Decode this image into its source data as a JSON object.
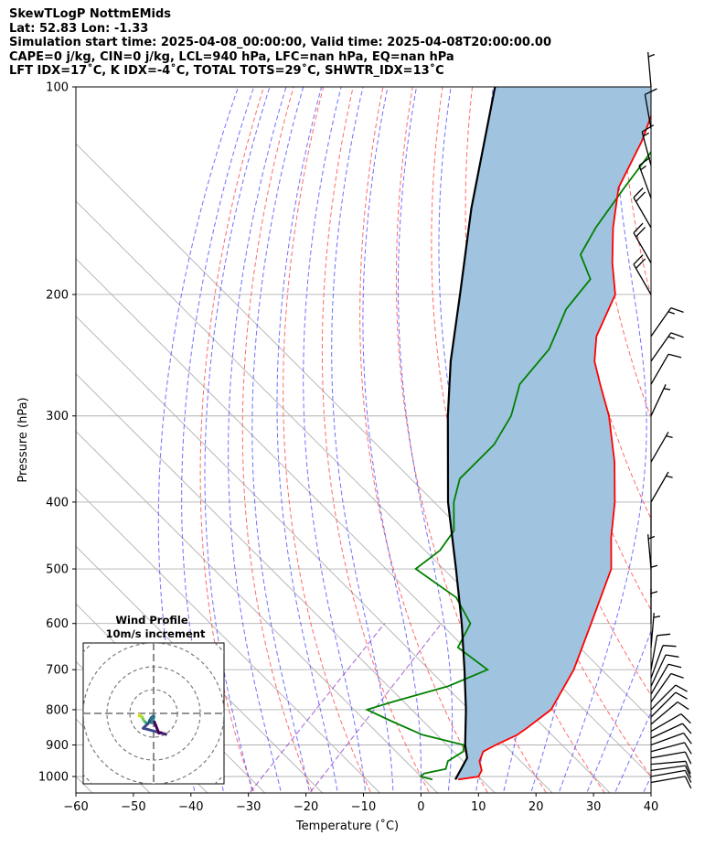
{
  "header": {
    "line1": "SkewTLogP NottmEMids",
    "line2": "Lat: 52.83   Lon: -1.33",
    "line3": "Simulation start time: 2025-04-08_00:00:00, Valid time: 2025-04-08T20:00:00.00",
    "line4": "CAPE=0 j/kg, CIN=0 j/kg, LCL=940 hPa, LFC=nan hPa, EQ=nan hPa",
    "line5": "LFT IDX=17˚C, K IDX=-4˚C, TOTAL TOTS=29˚C, SHWTR_IDX=13˚C"
  },
  "chart_data": {
    "type": "line",
    "xlabel": "Temperature (˚C)",
    "ylabel": "Pressure (hPa)",
    "xlim": [
      -60,
      40
    ],
    "ylim": [
      1050,
      100
    ],
    "yscale": "log",
    "grid": true,
    "x_ticks": [
      "−60",
      "−50",
      "−40",
      "−30",
      "−20",
      "−10",
      "0",
      "10",
      "20",
      "30",
      "40"
    ],
    "y_ticks": [
      "100",
      "200",
      "300",
      "400",
      "500",
      "600",
      "700",
      "800",
      "900",
      "1000"
    ],
    "series": [
      {
        "color": "#ff0000",
        "pressure": [
          1010,
          1000,
          980,
          950,
          920,
          900,
          870,
          850,
          800,
          700,
          600,
          500,
          450,
          400,
          350,
          300,
          270,
          250,
          230,
          200,
          180,
          160,
          140,
          120,
          100
        ],
        "temperature": [
          7,
          10,
          9.5,
          7.5,
          6.5,
          7.5,
          9.5,
          10,
          11,
          8,
          3,
          -3,
          -8.5,
          -14,
          -21,
          -30,
          -37,
          -42,
          -46,
          -50,
          -56,
          -62,
          -68,
          -72,
          -78
        ]
      },
      {
        "color": "#008000",
        "pressure": [
          1010,
          1000,
          990,
          975,
          950,
          920,
          900,
          870,
          830,
          800,
          780,
          740,
          700,
          650,
          600,
          550,
          500,
          470,
          440,
          400,
          370,
          330,
          300,
          270,
          240,
          210,
          190,
          175,
          160,
          140,
          120,
          100
        ],
        "temperature": [
          2.5,
          0,
          0,
          3,
          2,
          3,
          2,
          -7,
          -15,
          -21,
          -18,
          -11,
          -7,
          -16,
          -18,
          -25,
          -37,
          -36,
          -37,
          -42,
          -45,
          -45,
          -47,
          -51,
          -52,
          -56,
          -57,
          -63,
          -65,
          -67,
          -69,
          -70
        ]
      },
      {
        "color": "#000000",
        "pressure": [
          1010,
          940,
          900,
          800,
          700,
          600,
          500,
          400,
          300,
          250,
          200,
          150,
          100
        ],
        "temperature": [
          6.5,
          4.8,
          2.2,
          -3.8,
          -11,
          -19.5,
          -30,
          -43,
          -58,
          -67,
          -77,
          -90,
          -107
        ]
      }
    ],
    "wind_barbs": {
      "pressure": [
        1020,
        1000,
        980,
        960,
        940,
        920,
        900,
        880,
        860,
        840,
        820,
        800,
        780,
        760,
        740,
        720,
        700,
        650,
        600,
        550,
        500,
        450,
        400,
        350,
        300,
        270,
        250,
        230,
        200,
        180,
        160,
        145,
        130,
        115,
        100
      ],
      "speed_kt": [
        12,
        12,
        12,
        12,
        12,
        10,
        10,
        10,
        10,
        10,
        10,
        10,
        10,
        10,
        8,
        8,
        8,
        4,
        4,
        4,
        3,
        2,
        4,
        7,
        7,
        10,
        15,
        15,
        20,
        20,
        20,
        17,
        17,
        10,
        7
      ],
      "direction_deg": [
        80,
        80,
        82,
        85,
        80,
        75,
        70,
        65,
        60,
        50,
        45,
        45,
        35,
        30,
        25,
        20,
        10,
        5,
        0,
        0,
        355,
        0,
        30,
        30,
        25,
        30,
        35,
        35,
        330,
        330,
        330,
        340,
        345,
        350,
        355
      ]
    },
    "inset": {
      "title": "Wind Profile",
      "subtitle": "10m/s increment"
    }
  }
}
